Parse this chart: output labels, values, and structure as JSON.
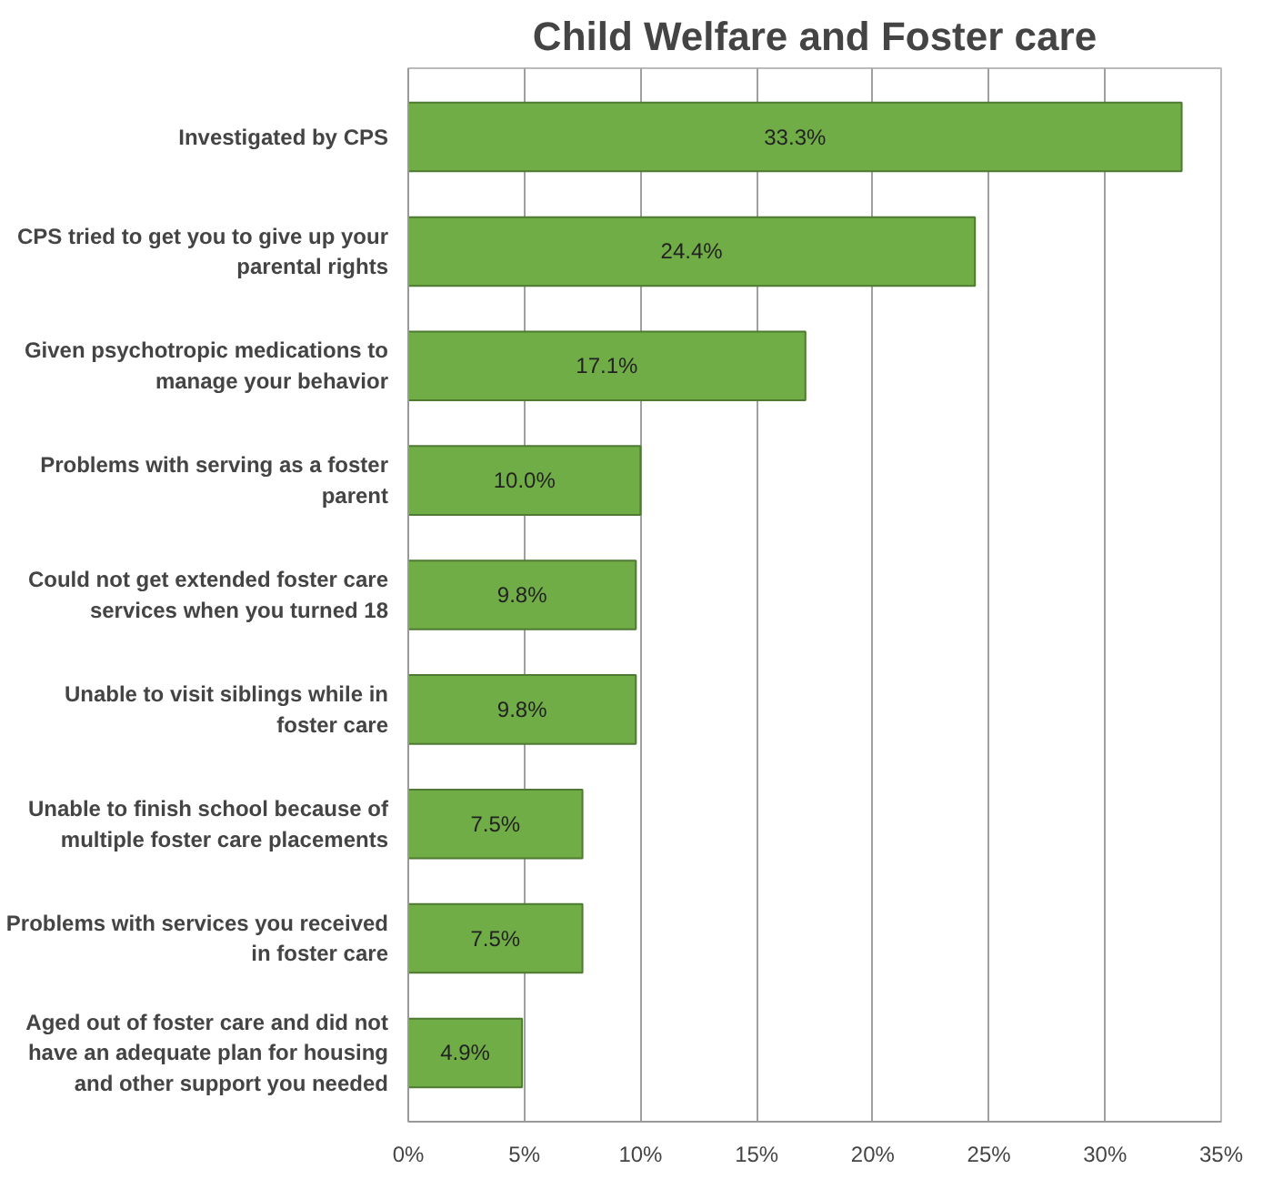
{
  "chart_data": {
    "type": "bar",
    "orientation": "horizontal",
    "title": "Child Welfare and Foster care",
    "categories": [
      "Investigated by CPS",
      "CPS tried to get you to give up your parental rights",
      "Given psychotropic medications to manage your behavior",
      "Problems with serving as a foster parent",
      "Could not get extended foster care services when you turned 18",
      "Unable to visit siblings while in foster care",
      "Unable to finish school because of multiple foster care placements",
      "Problems with services you received in foster care",
      "Aged out of foster care and did not have an adequate plan for housing and other support you needed"
    ],
    "values": [
      33.3,
      24.4,
      17.1,
      10.0,
      9.8,
      9.8,
      7.5,
      7.5,
      4.9
    ],
    "value_labels": [
      "33.3%",
      "24.4%",
      "17.1%",
      "10.0%",
      "9.8%",
      "9.8%",
      "7.5%",
      "7.5%",
      "4.9%"
    ],
    "color": "#70ad47",
    "xlim": [
      0,
      35
    ],
    "xticks": [
      {
        "value": 0,
        "label": "0%"
      },
      {
        "value": 5,
        "label": "5%"
      },
      {
        "value": 10,
        "label": "10%"
      },
      {
        "value": 15,
        "label": "15%"
      },
      {
        "value": 20,
        "label": "20%"
      },
      {
        "value": 25,
        "label": "25%"
      },
      {
        "value": 30,
        "label": "30%"
      },
      {
        "value": 35,
        "label": "35%"
      }
    ],
    "grid": "x"
  }
}
